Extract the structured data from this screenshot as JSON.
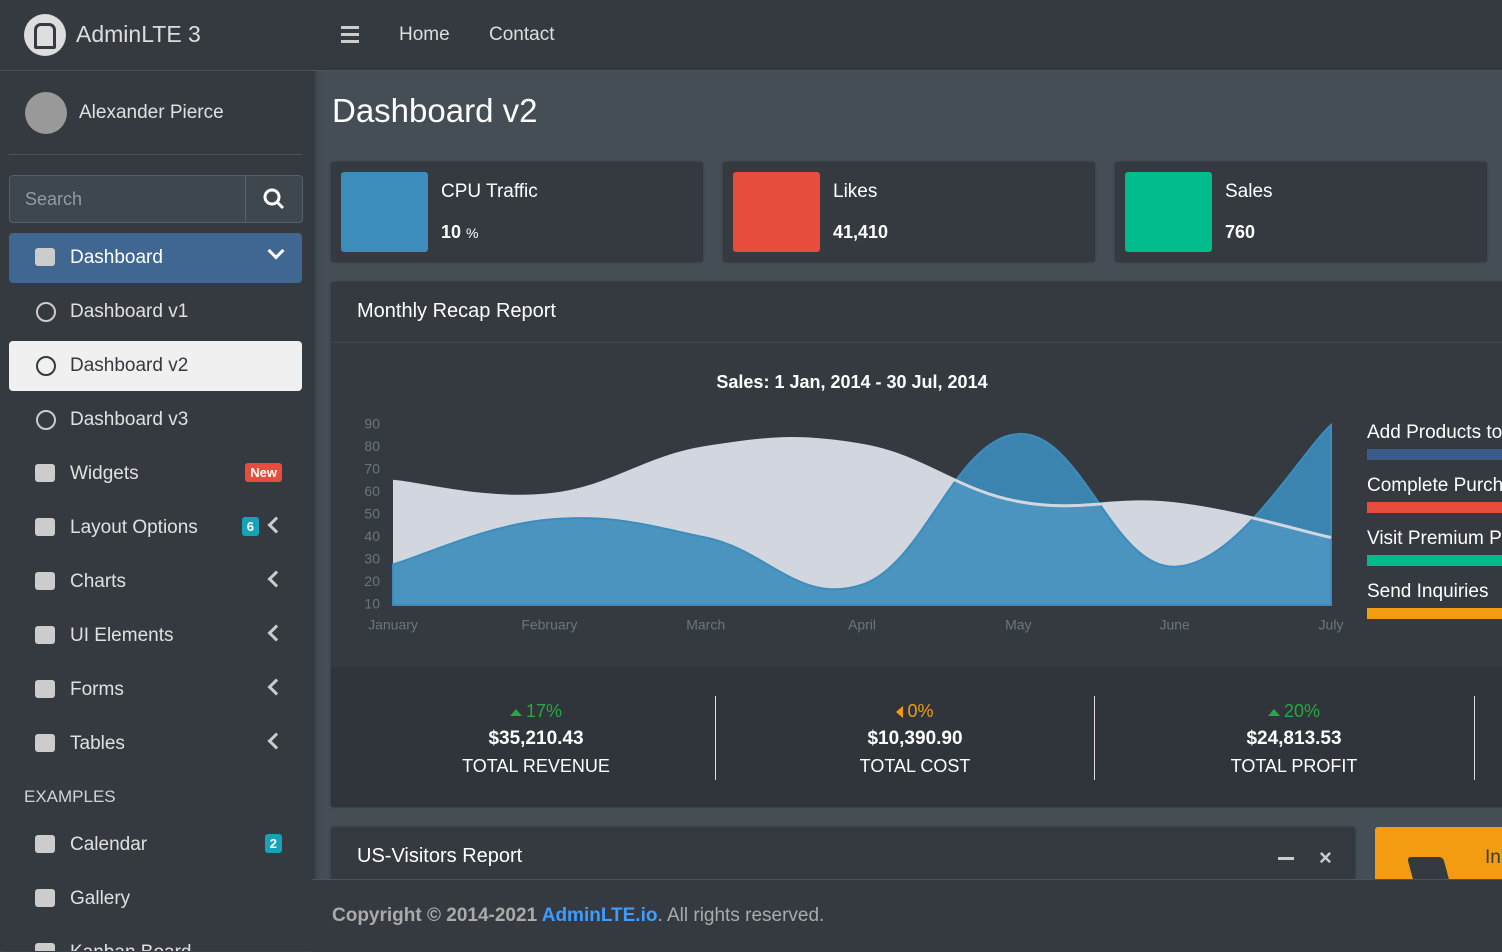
{
  "brand": "AdminLTE 3",
  "user": "Alexander Pierce",
  "search_placeholder": "Search",
  "nav": [
    "Home",
    "Contact"
  ],
  "menu": [
    {
      "label": "Dashboard"
    },
    {
      "label": "Dashboard v1"
    },
    {
      "label": "Dashboard v2"
    },
    {
      "label": "Dashboard v3"
    },
    {
      "label": "Widgets",
      "badge": "New"
    },
    {
      "label": "Layout Options",
      "badge": "6"
    },
    {
      "label": "Charts"
    },
    {
      "label": "UI Elements"
    },
    {
      "label": "Forms"
    },
    {
      "label": "Tables"
    }
  ],
  "examples_header": "EXAMPLES",
  "examples": [
    {
      "label": "Calendar",
      "badge": "2"
    },
    {
      "label": "Gallery"
    },
    {
      "label": "Kanban Board"
    }
  ],
  "page_title": "Dashboard v2",
  "info_boxes": [
    {
      "label": "CPU Traffic",
      "value": "10",
      "unit": "%"
    },
    {
      "label": "Likes",
      "value": "41,410"
    },
    {
      "label": "Sales",
      "value": "760"
    }
  ],
  "recap_title": "Monthly Recap Report",
  "chart": {
    "type": "area",
    "title": "Sales: 1 Jan, 2014 - 30 Jul, 2014",
    "categories": [
      "January",
      "February",
      "March",
      "April",
      "May",
      "June",
      "July"
    ],
    "series": [
      {
        "color": "#d2d6de",
        "values": [
          65,
          59,
          80,
          81,
          56,
          55,
          40
        ]
      },
      {
        "color": "#3c8dbc",
        "values": [
          28,
          48,
          40,
          19,
          86,
          27,
          90
        ]
      }
    ],
    "ylim": [
      10,
      90
    ],
    "yticks": [
      10,
      20,
      30,
      40,
      50,
      60,
      70,
      80,
      90
    ]
  },
  "goals": [
    {
      "label": "Add Products to",
      "color": "#3b5b8f"
    },
    {
      "label": "Complete Purch",
      "color": "#e74c3c"
    },
    {
      "label": "Visit Premium Pa",
      "color": "#00bc8c"
    },
    {
      "label": "Send Inquiries",
      "color": "#f39c12"
    }
  ],
  "stats": [
    {
      "change": "17%",
      "amount": "$35,210.43",
      "label": "TOTAL REVENUE",
      "trend": "up"
    },
    {
      "change": "0%",
      "amount": "$10,390.90",
      "label": "TOTAL COST",
      "trend": "flat"
    },
    {
      "change": "20%",
      "amount": "$24,813.53",
      "label": "TOTAL PROFIT",
      "trend": "up"
    }
  ],
  "visitors_title": "US-Visitors Report",
  "orange_box": "In",
  "footer": {
    "copyright": "Copyright © 2014-2021 ",
    "link": "AdminLTE.io",
    "suffix": ". All rights reserved."
  }
}
